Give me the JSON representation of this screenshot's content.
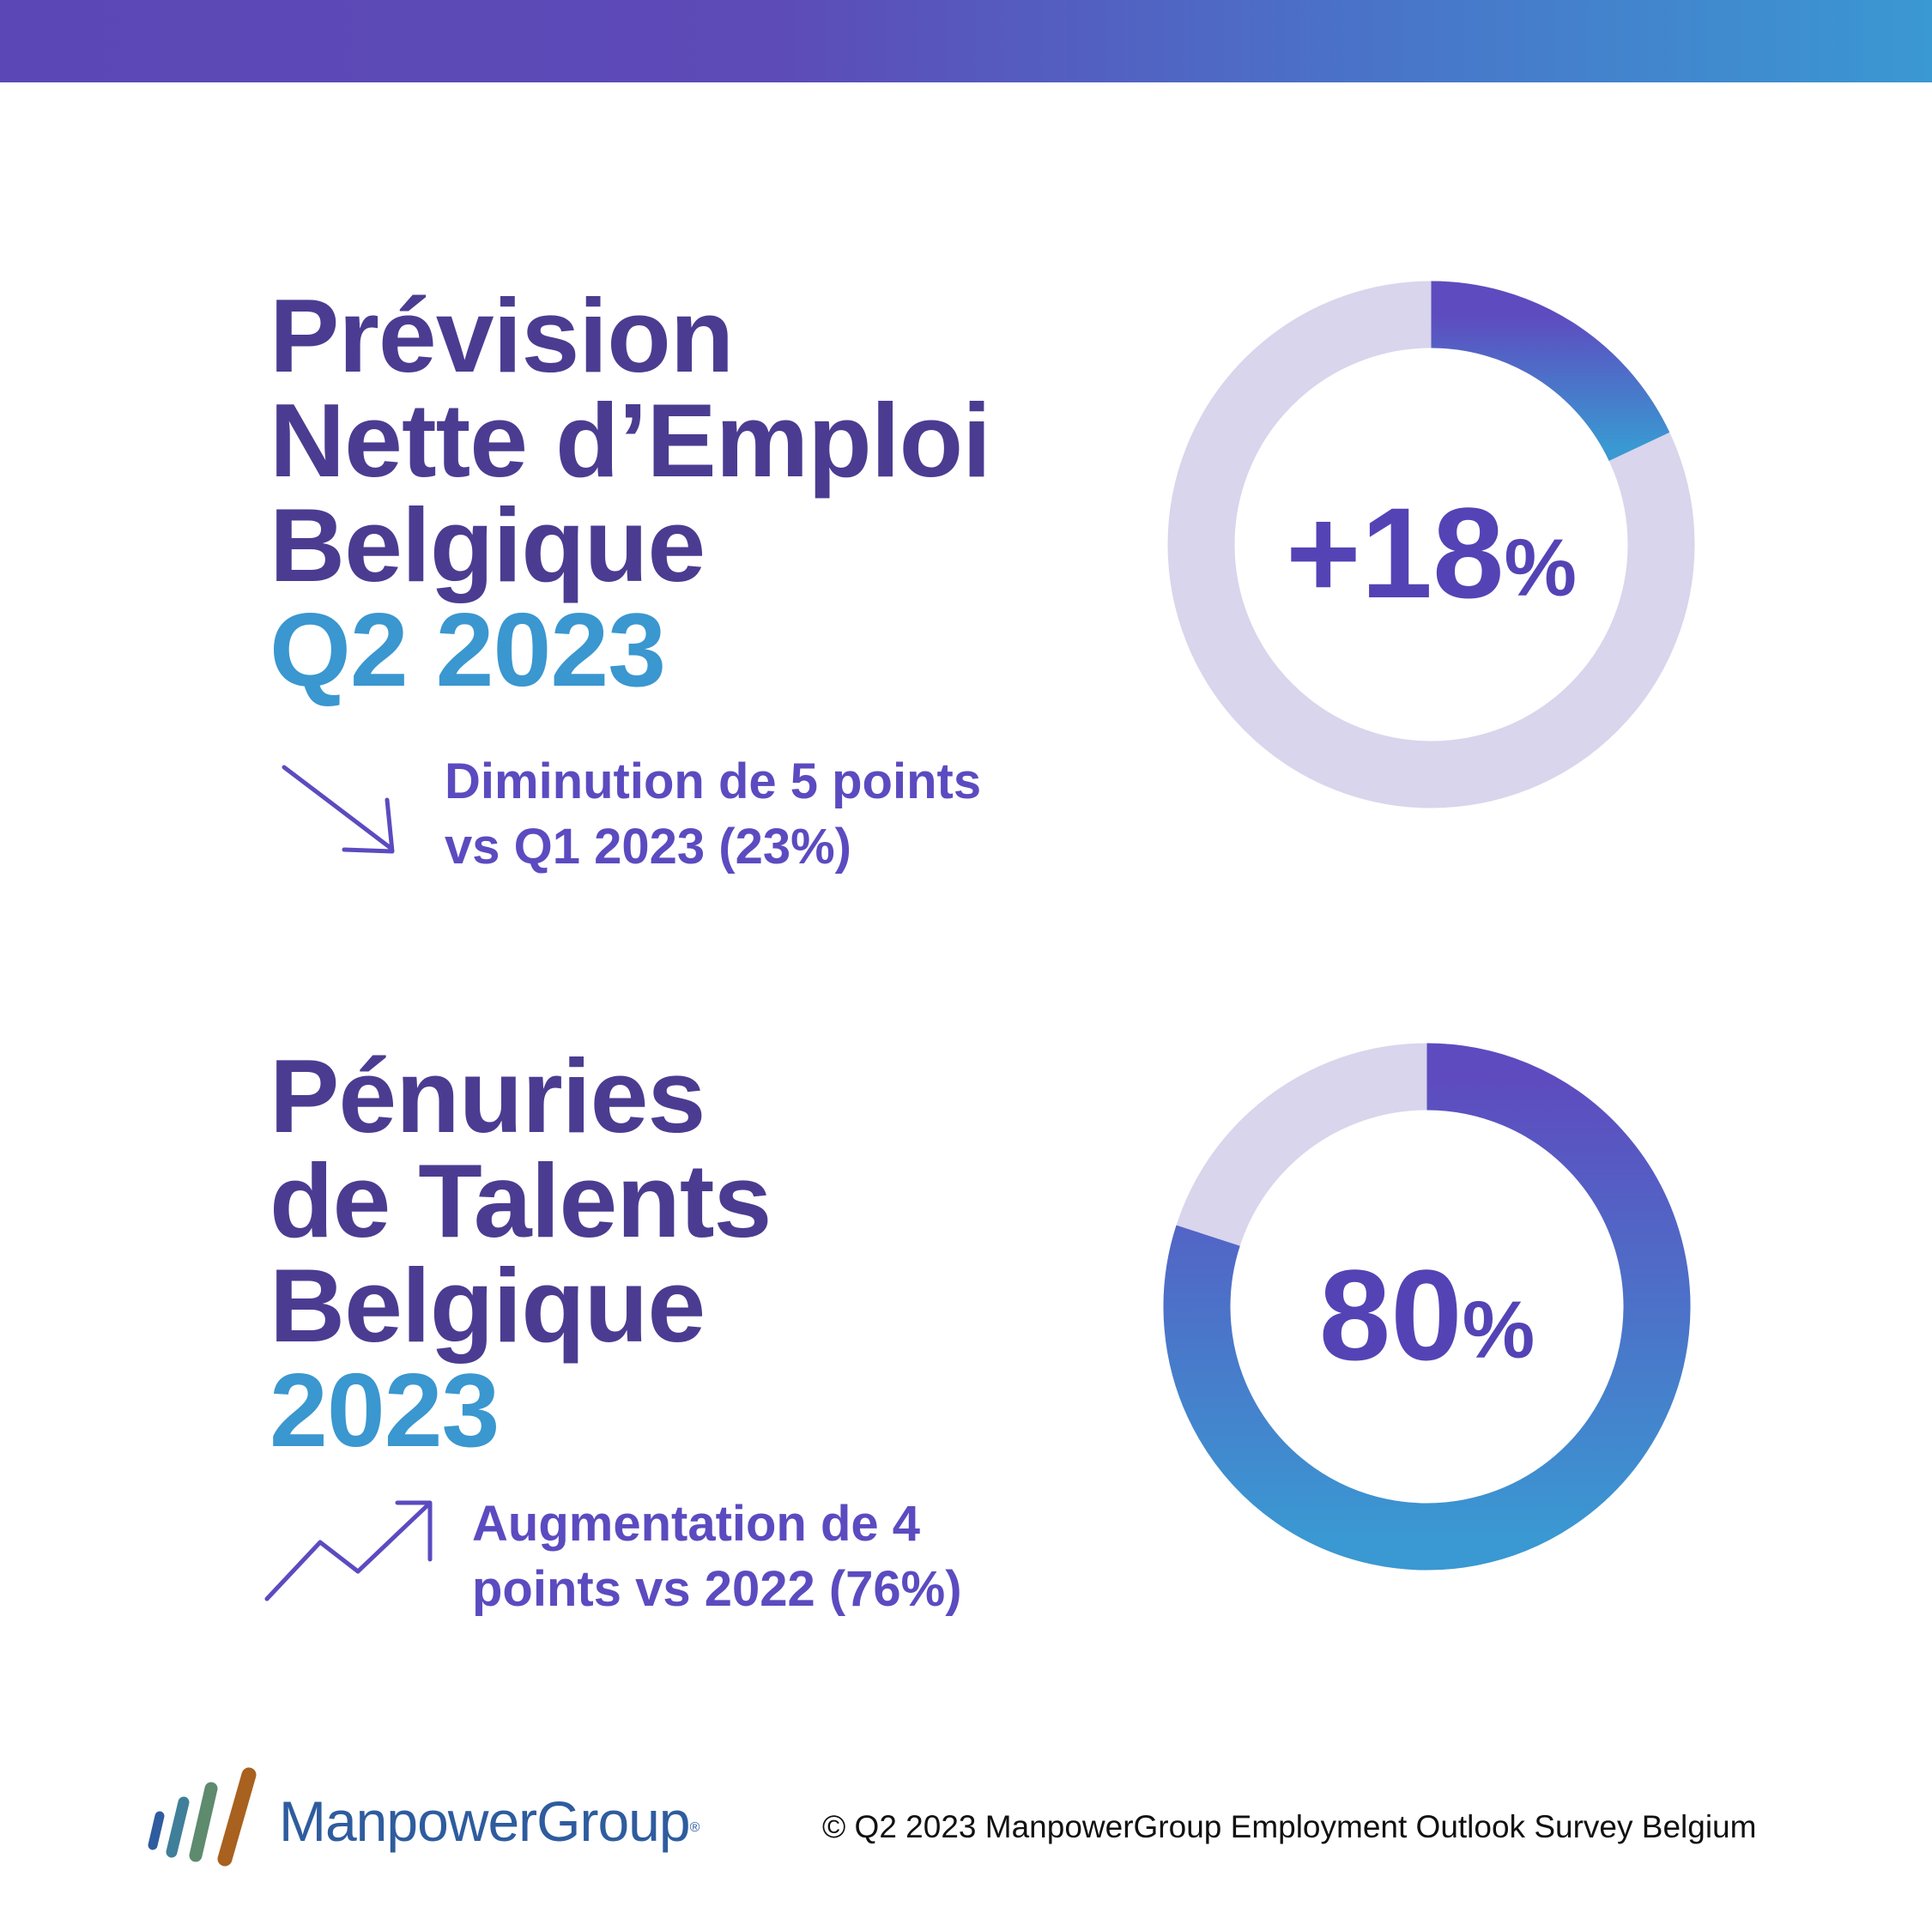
{
  "colors": {
    "title": "#4b3c91",
    "accent": "#3a97cf",
    "note": "#5b4bc0",
    "track": "#d8d5ec",
    "arc_start": "#5e4bbf",
    "arc_end": "#3a98d2"
  },
  "section1": {
    "title_lines": [
      "Prévision",
      "Nette d’Emploi",
      "Belgique"
    ],
    "period": "Q2 2023",
    "trend_icon": "arrow-down-right-icon",
    "note_lines": [
      "Diminution de 5 points",
      "vs Q1 2023 (23%)"
    ]
  },
  "section2": {
    "title_lines": [
      "Pénuries",
      "de Talents",
      "Belgique"
    ],
    "period": "2023",
    "trend_icon": "trend-up-icon",
    "note_lines": [
      "Augmentation de 4",
      "points vs 2022 (76%)"
    ]
  },
  "chart_data": [
    {
      "type": "pie",
      "categories": [
        "value",
        "remainder"
      ],
      "values": [
        18,
        82
      ],
      "center_value": "+18",
      "center_unit": "%"
    },
    {
      "type": "pie",
      "categories": [
        "value",
        "remainder"
      ],
      "values": [
        80,
        20
      ],
      "center_value": "80",
      "center_unit": "%"
    }
  ],
  "footer": {
    "brand": "ManpowerGroup",
    "registered": "®",
    "copyright": "© Q2 2023 ManpowerGroup Employment Outlook Survey Belgium"
  }
}
